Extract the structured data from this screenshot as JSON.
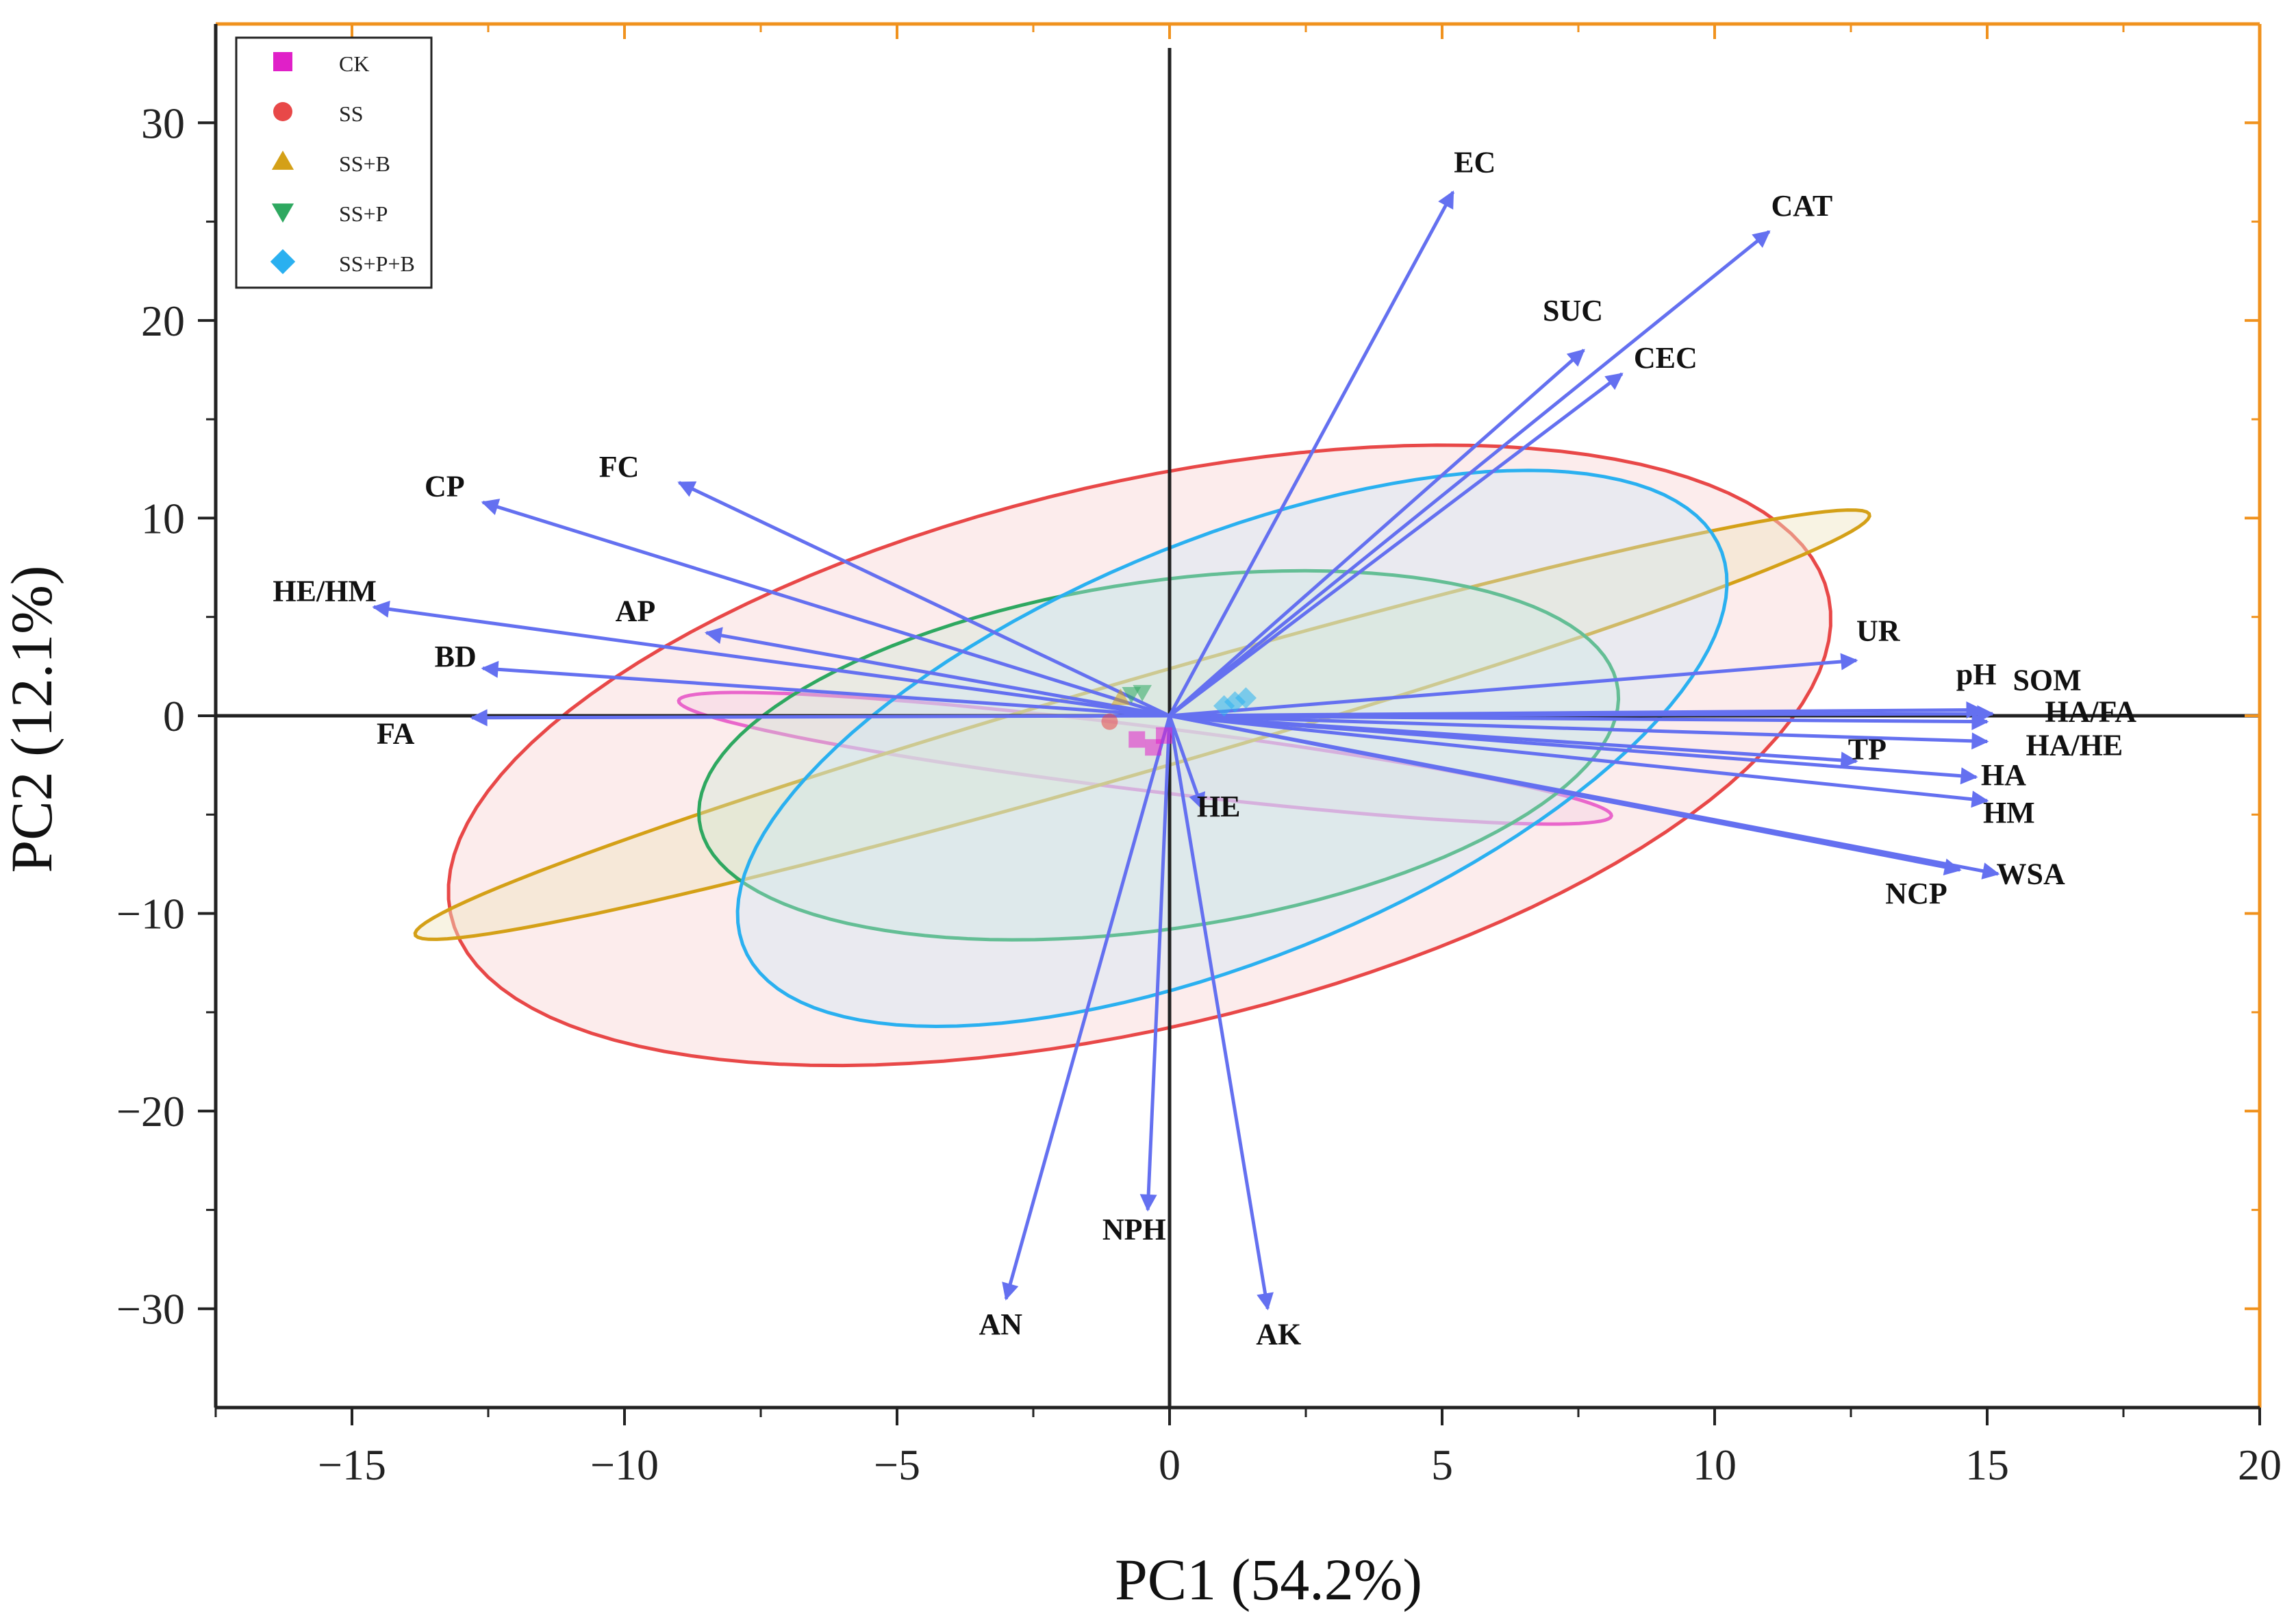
{
  "chart_data": {
    "type": "scatter",
    "subtype": "pca-biplot",
    "title": "",
    "xlabel": "PC1 (54.2%)",
    "ylabel": "PC2 (12.1%)",
    "xlim": [
      -17.5,
      20
    ],
    "ylim": [
      -35,
      35
    ],
    "xticks": [
      -15,
      -10,
      -5,
      0,
      5,
      10,
      15,
      20
    ],
    "yticks": [
      -30,
      -20,
      -10,
      0,
      10,
      20,
      30
    ],
    "xtick_labels": [
      "−15",
      "−10",
      "−5",
      "0",
      "5",
      "10",
      "15",
      "20"
    ],
    "ytick_labels": [
      "−30",
      "−20",
      "−10",
      "0",
      "10",
      "20",
      "30"
    ],
    "legend_position": "top-left",
    "colors": {
      "vector": "#6470f0",
      "axis": "#222222",
      "frame_secondary": "#f0921e"
    },
    "groups": [
      {
        "name": "CK",
        "marker": "square",
        "color": "#e020c8",
        "points": [
          [
            -0.6,
            -1.2
          ],
          [
            -0.3,
            -1.6
          ],
          [
            -0.1,
            -1.0
          ]
        ],
        "ellipse": {
          "cx": -0.45,
          "cy": -2.15,
          "rx": 9.05,
          "ry": 1.55,
          "angle_deg": -19.3,
          "fill": "#f0c8ec",
          "fill_opacity": 0.35
        }
      },
      {
        "name": "SS",
        "marker": "circle",
        "color": "#e84848",
        "points": [
          [
            -1.1,
            -0.3
          ]
        ],
        "ellipse": {
          "cx": -0.55,
          "cy": -2.0,
          "rx": 10.3,
          "ry": 17.35,
          "angle_deg": -32.0,
          "fill": "#f8d0d0",
          "fill_opacity": 0.4
        }
      },
      {
        "name": "SS+B",
        "marker": "triangle-up",
        "color": "#d4a017",
        "points": [
          [
            -0.9,
            0.9
          ]
        ],
        "ellipse": {
          "cx": -0.5,
          "cy": -0.45,
          "rx": 17.1,
          "ry": 1.9,
          "angle_deg": 39.0,
          "fill": "#f0e4c0",
          "fill_opacity": 0.45
        }
      },
      {
        "name": "SS+P",
        "marker": "triangle-down",
        "color": "#2ea860",
        "points": [
          [
            -0.7,
            1.1
          ],
          [
            -0.5,
            1.2
          ]
        ],
        "ellipse": {
          "cx": -0.2,
          "cy": -2.0,
          "rx": 7.3,
          "ry": 10.25,
          "angle_deg": -36.0,
          "fill": "#c8e8d4",
          "fill_opacity": 0.35
        }
      },
      {
        "name": "SS+P+B",
        "marker": "diamond",
        "color": "#2ab0f0",
        "points": [
          [
            1.2,
            0.7
          ],
          [
            1.4,
            0.9
          ],
          [
            1.0,
            0.5
          ]
        ],
        "ellipse": {
          "cx": 1.15,
          "cy": -1.65,
          "rx": 6.68,
          "ry": 15.35,
          "angle_deg": -26.4,
          "fill": "#c8e8f8",
          "fill_opacity": 0.35
        }
      }
    ],
    "loadings": [
      {
        "name": "EC",
        "x": 5.2,
        "y": 26.5,
        "label_x": 5.6,
        "label_y": 27.5
      },
      {
        "name": "CAT",
        "x": 11.0,
        "y": 24.5,
        "label_x": 11.6,
        "label_y": 25.3
      },
      {
        "name": "SUC",
        "x": 7.6,
        "y": 18.5,
        "label_x": 7.4,
        "label_y": 20.0
      },
      {
        "name": "CEC",
        "x": 8.3,
        "y": 17.3,
        "label_x": 9.1,
        "label_y": 17.6
      },
      {
        "name": "FC",
        "x": -9.0,
        "y": 11.8,
        "label_x": -10.1,
        "label_y": 12.1
      },
      {
        "name": "CP",
        "x": -12.6,
        "y": 10.8,
        "label_x": -13.3,
        "label_y": 11.1
      },
      {
        "name": "HE/HM",
        "x": -14.6,
        "y": 5.5,
        "label_x": -15.5,
        "label_y": 5.8
      },
      {
        "name": "AP",
        "x": -8.5,
        "y": 4.2,
        "label_x": -9.8,
        "label_y": 4.8
      },
      {
        "name": "BD",
        "x": -12.6,
        "y": 2.4,
        "label_x": -13.1,
        "label_y": 2.5
      },
      {
        "name": "FA",
        "x": -12.8,
        "y": -0.1,
        "label_x": -14.2,
        "label_y": -1.4
      },
      {
        "name": "UR",
        "x": 12.6,
        "y": 2.8,
        "label_x": 13.0,
        "label_y": 3.8
      },
      {
        "name": "pH",
        "x": 14.9,
        "y": 0.3,
        "label_x": 14.8,
        "label_y": 1.6
      },
      {
        "name": "SOM",
        "x": 15.1,
        "y": 0.1,
        "label_x": 16.1,
        "label_y": 1.3
      },
      {
        "name": "HA/FA",
        "x": 15.0,
        "y": -0.3,
        "label_x": 16.9,
        "label_y": -0.3
      },
      {
        "name": "HA/HE",
        "x": 15.0,
        "y": -1.3,
        "label_x": 16.6,
        "label_y": -2.0
      },
      {
        "name": "TP",
        "x": 12.6,
        "y": -2.3,
        "label_x": 12.8,
        "label_y": -2.2
      },
      {
        "name": "HA",
        "x": 14.8,
        "y": -3.1,
        "label_x": 15.3,
        "label_y": -3.5
      },
      {
        "name": "HM",
        "x": 15.0,
        "y": -4.3,
        "label_x": 15.4,
        "label_y": -5.4
      },
      {
        "name": "WSA",
        "x": 15.2,
        "y": -8.0,
        "label_x": 15.8,
        "label_y": -8.5
      },
      {
        "name": "NCP",
        "x": 14.5,
        "y": -7.8,
        "label_x": 13.7,
        "label_y": -9.5
      },
      {
        "name": "HE",
        "x": 0.6,
        "y": -4.7,
        "label_x": 0.9,
        "label_y": -5.1
      },
      {
        "name": "NPH",
        "x": -0.4,
        "y": -25.0,
        "label_x": -0.65,
        "label_y": -26.5
      },
      {
        "name": "AN",
        "x": -3.0,
        "y": -29.5,
        "label_x": -3.1,
        "label_y": -31.3
      },
      {
        "name": "AK",
        "x": 1.8,
        "y": -30.0,
        "label_x": 2.0,
        "label_y": -31.8
      }
    ]
  }
}
